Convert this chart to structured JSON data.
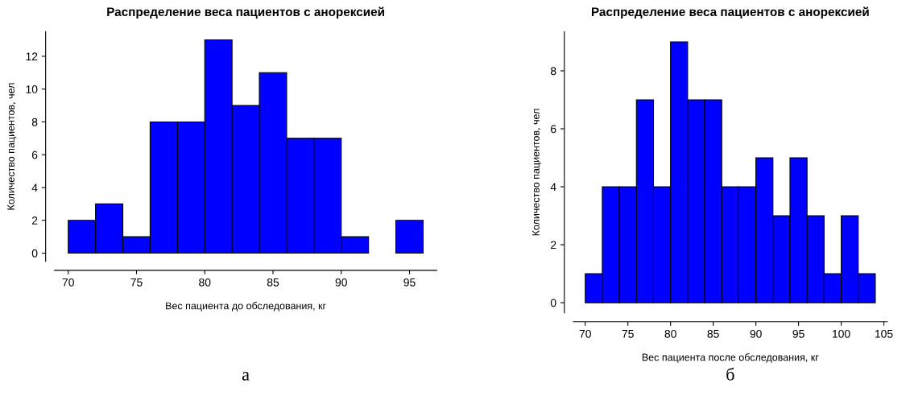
{
  "chart_data": [
    {
      "type": "histogram",
      "title": "Распределение веса пациентов с анорексией",
      "xlabel": "Вес пациента до обследования, кг",
      "ylabel": "Количество пациентов, чел",
      "color": "#0000ff",
      "bins": [
        70,
        72,
        74,
        76,
        78,
        80,
        82,
        84,
        86,
        88,
        90,
        92,
        94,
        96
      ],
      "values": [
        2,
        3,
        1,
        8,
        8,
        13,
        9,
        11,
        7,
        7,
        1,
        0,
        2
      ],
      "xlim": [
        69,
        97
      ],
      "ylim": [
        -0.5,
        13.5
      ],
      "xticks": [
        70,
        75,
        80,
        85,
        90,
        95
      ],
      "yticks": [
        0,
        2,
        4,
        6,
        8,
        10,
        12
      ],
      "grid": false,
      "annotations": [
        "а"
      ]
    },
    {
      "type": "histogram",
      "title": "Распределение веса пациентов с анорексией",
      "xlabel": "Вес пациента после обследования, кг",
      "ylabel": "Количество пациентов, чел",
      "color": "#0000ff",
      "bins": [
        70,
        72,
        74,
        76,
        78,
        80,
        82,
        84,
        86,
        88,
        90,
        92,
        94,
        96,
        98,
        100,
        102,
        104
      ],
      "values": [
        1,
        4,
        4,
        7,
        4,
        9,
        7,
        7,
        4,
        4,
        5,
        3,
        5,
        3,
        1,
        3,
        1
      ],
      "xlim": [
        68.6,
        105.4
      ],
      "ylim": [
        -0.35,
        9.35
      ],
      "xticks": [
        70,
        75,
        80,
        85,
        90,
        95,
        100,
        105
      ],
      "yticks": [
        0,
        2,
        4,
        6,
        8
      ],
      "grid": false,
      "annotations": [
        "б"
      ]
    }
  ]
}
